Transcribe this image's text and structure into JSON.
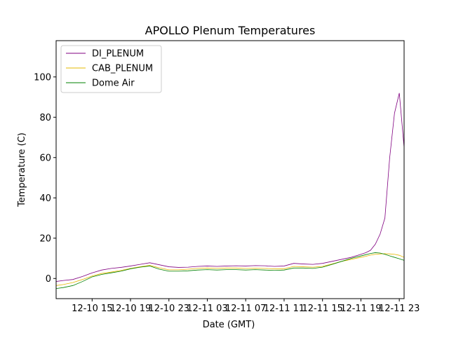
{
  "chart_data": {
    "type": "line",
    "title": "APOLLO Plenum Temperatures",
    "xlabel": "Date (GMT)",
    "ylabel": "Temperature (C)",
    "x_ticks": [
      "12-10 15",
      "12-10 19",
      "12-10 23",
      "12-11 03",
      "12-11 07",
      "12-11 11",
      "12-11 15",
      "12-11 19",
      "12-11 23"
    ],
    "y_ticks": [
      0,
      20,
      40,
      60,
      80,
      100
    ],
    "xlim": [
      "12-10 11:15",
      "12-11 23:30"
    ],
    "ylim": [
      -10,
      118
    ],
    "legend_position": "top-left",
    "grid": false,
    "x": [
      "12-10 11:15",
      "12-10 12:00",
      "12-10 13:00",
      "12-10 14:00",
      "12-10 15:00",
      "12-10 16:00",
      "12-10 17:00",
      "12-10 18:00",
      "12-10 19:00",
      "12-10 20:00",
      "12-10 21:00",
      "12-10 22:00",
      "12-10 23:00",
      "12-11 00:00",
      "12-11 01:00",
      "12-11 02:00",
      "12-11 03:00",
      "12-11 04:00",
      "12-11 05:00",
      "12-11 06:00",
      "12-11 07:00",
      "12-11 08:00",
      "12-11 09:00",
      "12-11 10:00",
      "12-11 11:00",
      "12-11 12:00",
      "12-11 13:00",
      "12-11 14:00",
      "12-11 15:00",
      "12-11 16:00",
      "12-11 17:00",
      "12-11 18:00",
      "12-11 19:00",
      "12-11 19:30",
      "12-11 20:00",
      "12-11 20:30",
      "12-11 21:00",
      "12-11 21:30",
      "12-11 22:00",
      "12-11 22:30",
      "12-11 23:00",
      "12-11 23:30"
    ],
    "series": [
      {
        "name": "DI_PLENUM",
        "color": "#800080",
        "values": [
          -1.5,
          -1.0,
          -0.5,
          1.0,
          2.8,
          4.2,
          5.0,
          5.5,
          6.2,
          7.0,
          7.8,
          6.8,
          5.8,
          5.5,
          5.6,
          6.0,
          6.2,
          6.0,
          6.2,
          6.3,
          6.2,
          6.4,
          6.3,
          6.0,
          6.2,
          7.5,
          7.2,
          7.0,
          7.5,
          8.5,
          9.5,
          10.5,
          12.0,
          12.8,
          14.0,
          17.0,
          22.0,
          30.0,
          60.0,
          82.0,
          92.0,
          65.0
        ]
      },
      {
        "name": "CAB_PLENUM",
        "color": "#e6b800",
        "values": [
          -3.5,
          -3.0,
          -2.0,
          -0.5,
          1.2,
          2.5,
          3.2,
          4.0,
          5.0,
          5.8,
          6.5,
          5.3,
          4.3,
          4.3,
          4.6,
          5.0,
          5.2,
          5.0,
          5.2,
          5.2,
          5.0,
          5.1,
          5.0,
          4.8,
          4.8,
          6.0,
          5.8,
          5.6,
          6.0,
          7.2,
          8.5,
          9.5,
          10.5,
          11.0,
          11.6,
          12.0,
          12.2,
          12.3,
          12.2,
          12.0,
          11.5,
          10.5
        ]
      },
      {
        "name": "Dome Air",
        "color": "#008000",
        "values": [
          -5.0,
          -4.5,
          -3.5,
          -1.5,
          0.8,
          2.0,
          2.8,
          3.6,
          4.8,
          5.6,
          6.2,
          4.6,
          3.6,
          3.6,
          3.8,
          4.2,
          4.4,
          4.2,
          4.4,
          4.4,
          4.2,
          4.4,
          4.2,
          4.0,
          4.2,
          5.2,
          5.2,
          5.0,
          5.6,
          7.0,
          8.5,
          10.0,
          11.2,
          11.8,
          12.4,
          12.8,
          12.6,
          12.0,
          11.2,
          10.5,
          9.8,
          9.0
        ]
      }
    ]
  }
}
